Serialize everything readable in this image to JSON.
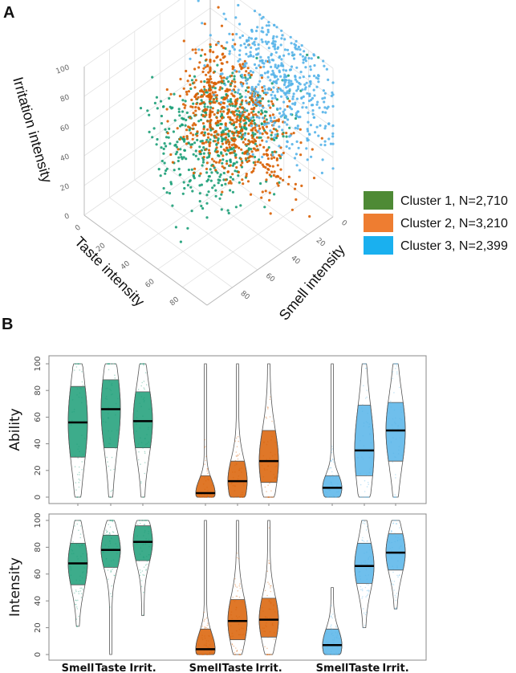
{
  "panels": {
    "a_label": "A",
    "b_label": "B"
  },
  "chart_data": [
    {
      "type": "scatter",
      "subtype": "3d",
      "axes": {
        "x": {
          "label": "Smell intensity",
          "ticks": [
            "0",
            "20",
            "40",
            "60",
            "80"
          ],
          "range": [
            0,
            100
          ]
        },
        "y": {
          "label": "Taste intensity",
          "ticks": [
            "0",
            "20",
            "40",
            "60",
            "80"
          ],
          "range": [
            0,
            100
          ]
        },
        "z": {
          "label": "Irritation intensity",
          "ticks": [
            "0",
            "20",
            "40",
            "60",
            "80",
            "100"
          ],
          "range": [
            0,
            100
          ]
        }
      },
      "legend": {
        "placement": "right",
        "entries": [
          {
            "label": "Cluster 1, N=2,710",
            "color": "#4e8a35",
            "point_color": "#1b9e77",
            "n": 2710
          },
          {
            "label": "Cluster 2, N=3,210",
            "color": "#ee7d31",
            "point_color": "#d95f02",
            "n": 3210
          },
          {
            "label": "Cluster 3, N=2,399",
            "color": "#1ab0ef",
            "point_color": "#56b4e9",
            "n": 2399
          }
        ]
      }
    },
    {
      "type": "violin",
      "categories": [
        "Smell",
        "Taste",
        "Irrit."
      ],
      "groups": [
        "Cluster 1",
        "Cluster 2",
        "Cluster 3"
      ],
      "colors": [
        "#1b9e77",
        "#d95f02",
        "#56b4e9"
      ],
      "ylim": [
        0,
        100
      ],
      "yticks": [
        "0",
        "20",
        "40",
        "60",
        "80",
        "100"
      ],
      "rows": [
        {
          "ylabel": "Ability",
          "series": [
            [
              {
                "min": 0,
                "q1": 30,
                "median": 56,
                "q3": 83,
                "max": 100
              },
              {
                "min": 0,
                "q1": 37,
                "median": 66,
                "q3": 88,
                "max": 100
              },
              {
                "min": 0,
                "q1": 37,
                "median": 57,
                "q3": 79,
                "max": 100
              }
            ],
            [
              {
                "min": 0,
                "q1": 0,
                "median": 3,
                "q3": 16,
                "max": 100
              },
              {
                "min": 0,
                "q1": 0,
                "median": 12,
                "q3": 27,
                "max": 100
              },
              {
                "min": 0,
                "q1": 11,
                "median": 27,
                "q3": 50,
                "max": 100
              }
            ],
            [
              {
                "min": 0,
                "q1": 0,
                "median": 7,
                "q3": 16,
                "max": 100
              },
              {
                "min": 0,
                "q1": 16,
                "median": 35,
                "q3": 69,
                "max": 100
              },
              {
                "min": 0,
                "q1": 27,
                "median": 50,
                "q3": 71,
                "max": 100
              }
            ]
          ]
        },
        {
          "ylabel": "Intensity",
          "series": [
            [
              {
                "min": 21,
                "q1": 52,
                "median": 68,
                "q3": 83,
                "max": 100
              },
              {
                "min": 0,
                "q1": 65,
                "median": 78,
                "q3": 89,
                "max": 100
              },
              {
                "min": 29,
                "q1": 70,
                "median": 84,
                "q3": 96,
                "max": 100
              }
            ],
            [
              {
                "min": 0,
                "q1": 0,
                "median": 4,
                "q3": 19,
                "max": 100
              },
              {
                "min": 0,
                "q1": 11,
                "median": 25,
                "q3": 41,
                "max": 100
              },
              {
                "min": 0,
                "q1": 13,
                "median": 26,
                "q3": 42,
                "max": 100
              }
            ],
            [
              {
                "min": 0,
                "q1": 0,
                "median": 7,
                "q3": 19,
                "max": 50
              },
              {
                "min": 20,
                "q1": 53,
                "median": 66,
                "q3": 83,
                "max": 100
              },
              {
                "min": 34,
                "q1": 63,
                "median": 76,
                "q3": 90,
                "max": 100
              }
            ]
          ]
        }
      ]
    }
  ]
}
